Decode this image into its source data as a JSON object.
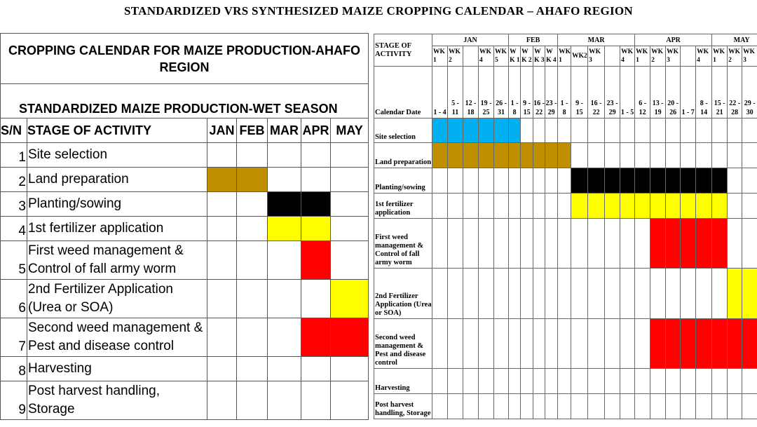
{
  "title": "STANDARDIZED VRS SYNTHESIZED MAIZE CROPPING CALENDAR – AHAFO REGION",
  "colors": {
    "blue": "#00b0f0",
    "gold": "#bf8f00",
    "black": "#000000",
    "yellow": "#ffff00",
    "red": "#ff0000"
  },
  "left": {
    "title": "CROPPING CALENDAR FOR MAIZE PRODUCTION-AHAFO REGION",
    "subtitle": "STANDARDIZED MAIZE PRODUCTION-WET SEASON",
    "headers": {
      "sn": "S/N",
      "stage": "STAGE OF ACTIVITY"
    },
    "months": [
      "JAN",
      "FEB",
      "MAR",
      "APR",
      "MAY"
    ],
    "rows": [
      {
        "sn": "1",
        "activity": "Site selection",
        "fills": [
          "",
          "",
          "",
          "",
          ""
        ]
      },
      {
        "sn": "2",
        "activity": "Land preparation",
        "fills": [
          "gold",
          "gold",
          "",
          "",
          ""
        ]
      },
      {
        "sn": "3",
        "activity": "Planting/sowing",
        "fills": [
          "",
          "",
          "black",
          "black",
          ""
        ]
      },
      {
        "sn": "4",
        "activity": "1st  fertilizer  application",
        "fills": [
          "",
          "",
          "yellow",
          "yellow",
          ""
        ]
      },
      {
        "sn": "5",
        "activity": "First weed management  & Control of fall army worm",
        "fills": [
          "",
          "",
          "",
          "red",
          ""
        ]
      },
      {
        "sn": "6",
        "activity": "2nd Fertilizer Application (Urea or SOA)",
        "fills": [
          "",
          "",
          "",
          "",
          "yellow"
        ]
      },
      {
        "sn": "7",
        "activity": "Second weed management & Pest and disease control",
        "fills": [
          "",
          "",
          "",
          "red",
          "red"
        ]
      },
      {
        "sn": "8",
        "activity": "Harvesting",
        "fills": [
          "",
          "",
          "",
          "",
          ""
        ]
      },
      {
        "sn": "9",
        "activity": "Post harvest handling, Storage",
        "fills": [
          "",
          "",
          "",
          "",
          ""
        ]
      }
    ]
  },
  "right": {
    "stage_header": "STAGE OF ACTIVITY",
    "date_header": "Calendar Date",
    "months": [
      {
        "name": "JAN",
        "span": 5
      },
      {
        "name": "FEB",
        "span": 4
      },
      {
        "name": "MAR",
        "span": 5
      },
      {
        "name": "APR",
        "span": 5
      },
      {
        "name": "MAY",
        "span": 5
      }
    ],
    "weeks": [
      "WK 1",
      "WK2",
      "",
      "WK4",
      "WK 5",
      "WK 1",
      "WK 2",
      "WK 3",
      "WK 4",
      "WK 1",
      "WK2",
      "WK 3",
      "",
      "WK4",
      "WK 1",
      "WK 2",
      "WK 3",
      "",
      "WK4",
      "WK 1",
      "WK 2",
      "WK3",
      "WK 4",
      "WK 5"
    ],
    "week_spans": [
      1,
      2,
      0,
      1,
      1,
      1,
      1,
      1,
      1,
      1,
      2,
      0,
      1,
      1,
      1,
      1,
      1,
      1,
      1,
      1,
      1,
      1,
      1,
      1
    ],
    "dates": [
      "1 - 4",
      "5 - 11",
      "12 - 18",
      "19 - 25",
      "26 - 31",
      "1 - 8",
      "9 - 15",
      "16 - 22",
      "23 - 29",
      "1 - 8",
      "9 - 15",
      "16 - 22",
      "23 - 29",
      "1 - 5",
      "6 - 12",
      "13 - 19",
      "20 - 26",
      "1 - 7",
      "8 - 14",
      "15 - 21",
      "22 - 28",
      "29 - 30"
    ],
    "rows": [
      {
        "label": "Site selection",
        "color": "blue",
        "start": 0,
        "end": 6
      },
      {
        "label": "Land preparation",
        "color": "gold",
        "start": 0,
        "end": 10
      },
      {
        "label": "Planting/sowing",
        "color": "black",
        "start": 10,
        "end": 20
      },
      {
        "label": "1st  fertilizer application",
        "color": "yellow",
        "start": 10,
        "end": 20
      },
      {
        "label": "First weed management  & Control of fall army worm",
        "color": "red",
        "start": 15,
        "end": 20
      },
      {
        "label": "2nd Fertilizer Application (Urea or SOA)",
        "color": "yellow",
        "start": 20,
        "end": 25
      },
      {
        "label": "Second weed management & Pest and disease control",
        "color": "red",
        "start": 15,
        "end": 25
      },
      {
        "label": "Harvesting",
        "color": "",
        "start": 0,
        "end": 0
      },
      {
        "label": "Post harvest handling, Storage",
        "color": "",
        "start": 0,
        "end": 0
      }
    ]
  }
}
